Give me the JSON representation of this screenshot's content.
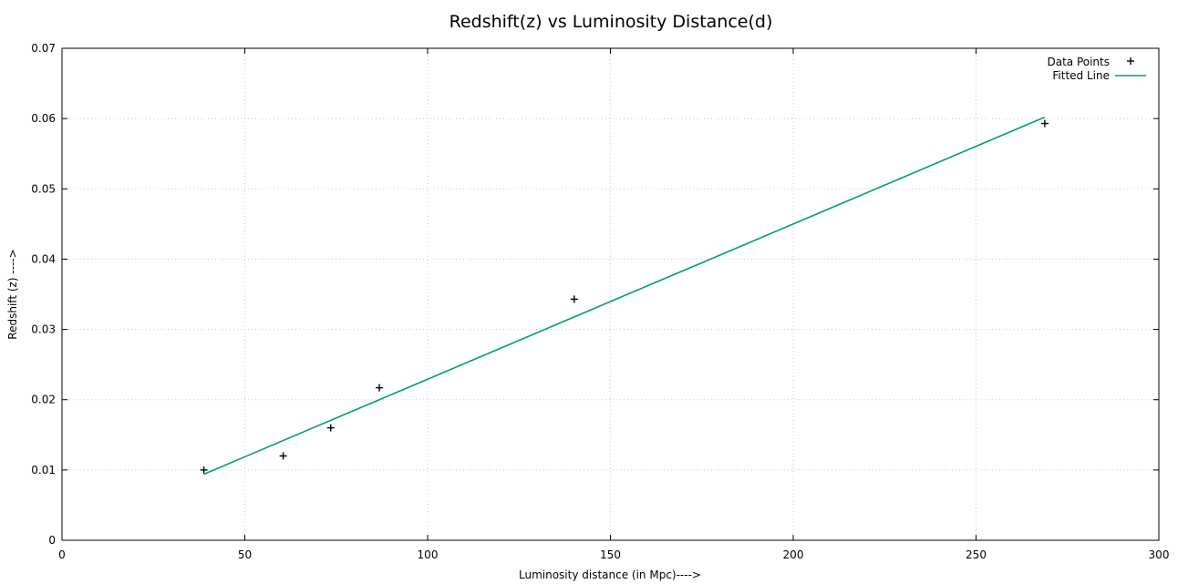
{
  "chart_data": {
    "type": "scatter",
    "title": "Redshift(z) vs Luminosity Distance(d)",
    "xlabel": "Luminosity distance (in Mpc)---->",
    "ylabel": "Redshift (z) ---->",
    "xlim": [
      0,
      300
    ],
    "ylim": [
      0,
      0.07
    ],
    "xticks": [
      "0",
      "50",
      "100",
      "150",
      "200",
      "250",
      "300"
    ],
    "yticks": [
      "0",
      "0.01",
      "0.02",
      "0.03",
      "0.04",
      "0.05",
      "0.06",
      "0.07"
    ],
    "grid": true,
    "legend_position": "top-right",
    "series": [
      {
        "name": "Data Points",
        "kind": "points",
        "marker": "plus",
        "color": "#000000",
        "x": [
          38.8,
          60.5,
          73.5,
          86.8,
          140.1,
          268.8
        ],
        "y": [
          0.01,
          0.012,
          0.016,
          0.0217,
          0.0343,
          0.0593
        ]
      },
      {
        "name": "Fitted Line",
        "kind": "line",
        "color": "#009e73",
        "x": [
          38.8,
          268.8
        ],
        "y": [
          0.0094,
          0.0602
        ]
      }
    ]
  }
}
